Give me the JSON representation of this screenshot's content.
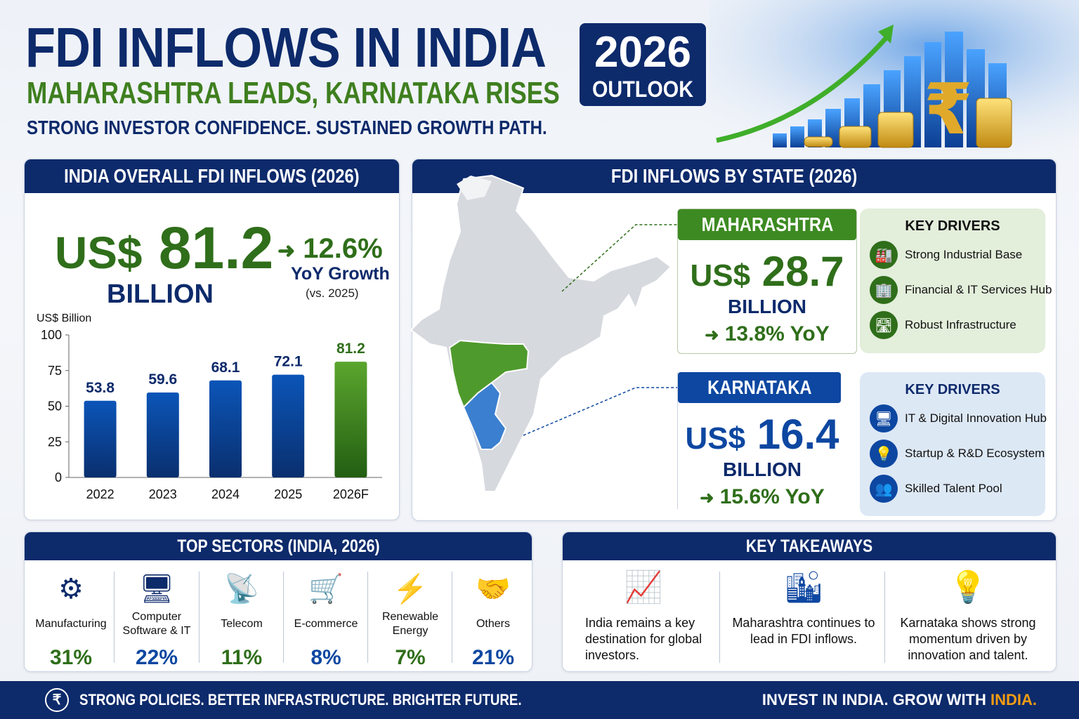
{
  "header": {
    "title": "FDI INFLOWS IN INDIA",
    "subtitle": "MAHARASHTRA LEADS, KARNATAKA RISES",
    "tagline": "STRONG INVESTOR CONFIDENCE.  SUSTAINED GROWTH PATH.",
    "badge_year": "2026",
    "badge_label": "OUTLOOK"
  },
  "overall": {
    "heading": "INDIA OVERALL FDI INFLOWS (2026)",
    "currency": "US$",
    "value": "81.2",
    "unit": "BILLION",
    "growth": "12.6%",
    "growth_label": "YoY Growth",
    "growth_note": "(vs. 2025)"
  },
  "chart_data": {
    "type": "bar",
    "ylabel": "US$ Billion",
    "categories": [
      "2022",
      "2023",
      "2024",
      "2025",
      "2026F"
    ],
    "values": [
      53.8,
      59.6,
      68.1,
      72.1,
      81.2
    ],
    "value_labels": [
      "53.8",
      "59.6",
      "68.1",
      "72.1",
      "81.2"
    ],
    "yticks": [
      "0",
      "25",
      "50",
      "75",
      "100"
    ],
    "ylim": [
      0,
      100
    ],
    "grid": false,
    "colors": {
      "actual": "#0b4aa8",
      "forecast": "#4e9a2a"
    }
  },
  "states": {
    "heading": "FDI INFLOWS BY STATE (2026)",
    "maharashtra": {
      "name": "MAHARASHTRA",
      "currency": "US$",
      "value": "28.7",
      "unit": "BILLION",
      "yoy": "13.8% YoY",
      "color": "#3d8a22",
      "drivers_title": "KEY DRIVERS",
      "drivers": [
        {
          "icon": "factory-icon",
          "label": "Strong Industrial Base"
        },
        {
          "icon": "buildings-icon",
          "label": "Financial & IT Services Hub"
        },
        {
          "icon": "road-icon",
          "label": "Robust Infrastructure"
        }
      ]
    },
    "karnataka": {
      "name": "KARNATAKA",
      "currency": "US$",
      "value": "16.4",
      "unit": "BILLION",
      "yoy": "15.6% YoY",
      "color": "#0d47a1",
      "drivers_title": "KEY DRIVERS",
      "drivers": [
        {
          "icon": "monitor-icon",
          "label": "IT & Digital Innovation Hub"
        },
        {
          "icon": "lightbulb-icon",
          "label": "Startup & R&D Ecosystem"
        },
        {
          "icon": "people-icon",
          "label": "Skilled Talent Pool"
        }
      ]
    }
  },
  "sectors": {
    "heading": "TOP SECTORS (INDIA, 2026)",
    "items": [
      {
        "icon": "gears-icon",
        "label": "Manufacturing",
        "pct": "31%",
        "color": "#2f6e1a"
      },
      {
        "icon": "computer-icon",
        "label": "Computer Software & IT",
        "pct": "22%",
        "color": "#0d47a1"
      },
      {
        "icon": "tower-icon",
        "label": "Telecom",
        "pct": "11%",
        "color": "#2f6e1a"
      },
      {
        "icon": "cart-icon",
        "label": "E-commerce",
        "pct": "8%",
        "color": "#0d47a1"
      },
      {
        "icon": "lightning-icon",
        "label": "Renewable Energy",
        "pct": "7%",
        "color": "#2f6e1a"
      },
      {
        "icon": "handshake-icon",
        "label": "Others",
        "pct": "21%",
        "color": "#0d47a1"
      }
    ]
  },
  "takeaways": {
    "heading": "KEY TAKEAWAYS",
    "items": [
      {
        "icon": "growth-chart-icon",
        "text": "India remains a key destination for global investors."
      },
      {
        "icon": "city-icon",
        "text": "Maharashtra continues to lead in FDI inflows."
      },
      {
        "icon": "lightbulb-icon",
        "text": "Karnataka shows strong momentum driven by innovation and talent."
      }
    ]
  },
  "footer": {
    "left": "STRONG POLICIES. BETTER INFRASTRUCTURE.  BRIGHTER FUTURE.",
    "right_prefix": "INVEST IN INDIA. GROW WITH ",
    "right_highlight": "INDIA.",
    "highlight_color": "#f39c12"
  }
}
